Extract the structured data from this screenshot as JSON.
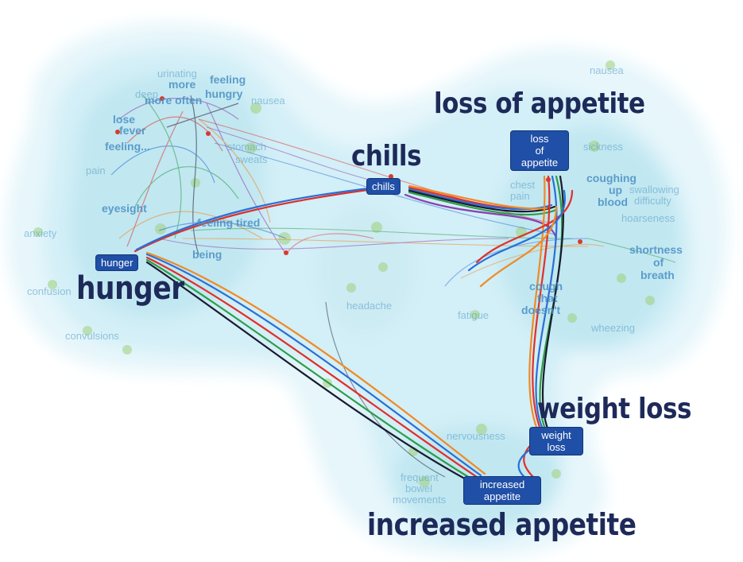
{
  "callouts": {
    "loss_of_appetite": "loss of appetite",
    "chills": "chills",
    "hunger": "hunger",
    "weight_loss": "weight loss",
    "increased_appetite": "increased appetite"
  },
  "nodes": {
    "loss_of_appetite": [
      "loss",
      "of",
      "appetite"
    ],
    "chills": "chills",
    "hunger": "hunger",
    "weight_loss": [
      "weight",
      "loss"
    ],
    "increased_appetite": [
      "increased",
      "appetite"
    ]
  },
  "background_terms": [
    "urinating",
    "more",
    "feeling",
    "hungry",
    "more often",
    "deep",
    "nausea",
    "lose",
    "feeling...",
    "fever",
    "pain",
    "eyesight",
    "anxiety",
    "confusion",
    "convulsions",
    "feeling tired",
    "being",
    "stomach",
    "sweats",
    "coughing",
    "up",
    "blood",
    "swallowing",
    "difficulty",
    "hoarseness",
    "sickness",
    "shortness",
    "of",
    "breath",
    "cough",
    "that",
    "doesn't",
    "wheezing",
    "headache",
    "fatigue",
    "nervousness",
    "frequent",
    "bowel",
    "movements",
    "nausea",
    "chest",
    "pain"
  ],
  "colors": {
    "node_fill": "#1f4fa6",
    "callout_text": "#1d2a59",
    "cluster_fill": "#cfeef6",
    "edge_red": "#e0302a",
    "edge_blue": "#2a6fd6",
    "edge_green": "#2f9d4a",
    "edge_orange": "#f08a24",
    "edge_purple": "#8a3fb0",
    "edge_dark": "#1a1a2e"
  }
}
